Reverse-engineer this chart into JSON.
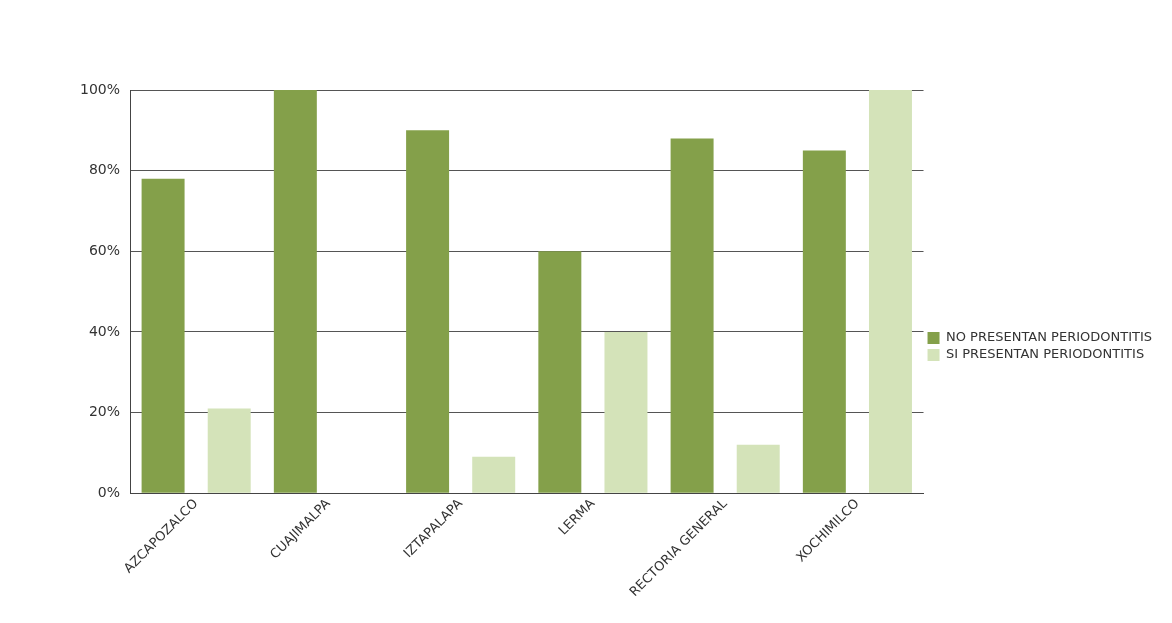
{
  "chart_data": {
    "type": "bar",
    "categories": [
      "AZCAPOZALCO",
      "CUAJIMALPA",
      "IZTAPALAPA",
      "LERMA",
      "RECTORIA GENERAL",
      "XOCHIMILCO"
    ],
    "series": [
      {
        "name": "NO PRESENTAN PERIODONTITIS",
        "color": "#84a04a",
        "values": [
          78,
          100,
          90,
          60,
          88,
          85
        ]
      },
      {
        "name": "SI PRESENTAN PERIODONTITIS",
        "color": "#d4e3b9",
        "values": [
          21,
          0,
          9,
          40,
          12,
          100
        ]
      }
    ],
    "ylim": [
      0,
      100
    ],
    "yticks": [
      {
        "value": 0,
        "label": "0%"
      },
      {
        "value": 20,
        "label": "20%"
      },
      {
        "value": 40,
        "label": "40%"
      },
      {
        "value": 60,
        "label": "60%"
      },
      {
        "value": 80,
        "label": "80%"
      },
      {
        "value": 100,
        "label": "100%"
      }
    ],
    "grid": "y",
    "legend": "right"
  }
}
